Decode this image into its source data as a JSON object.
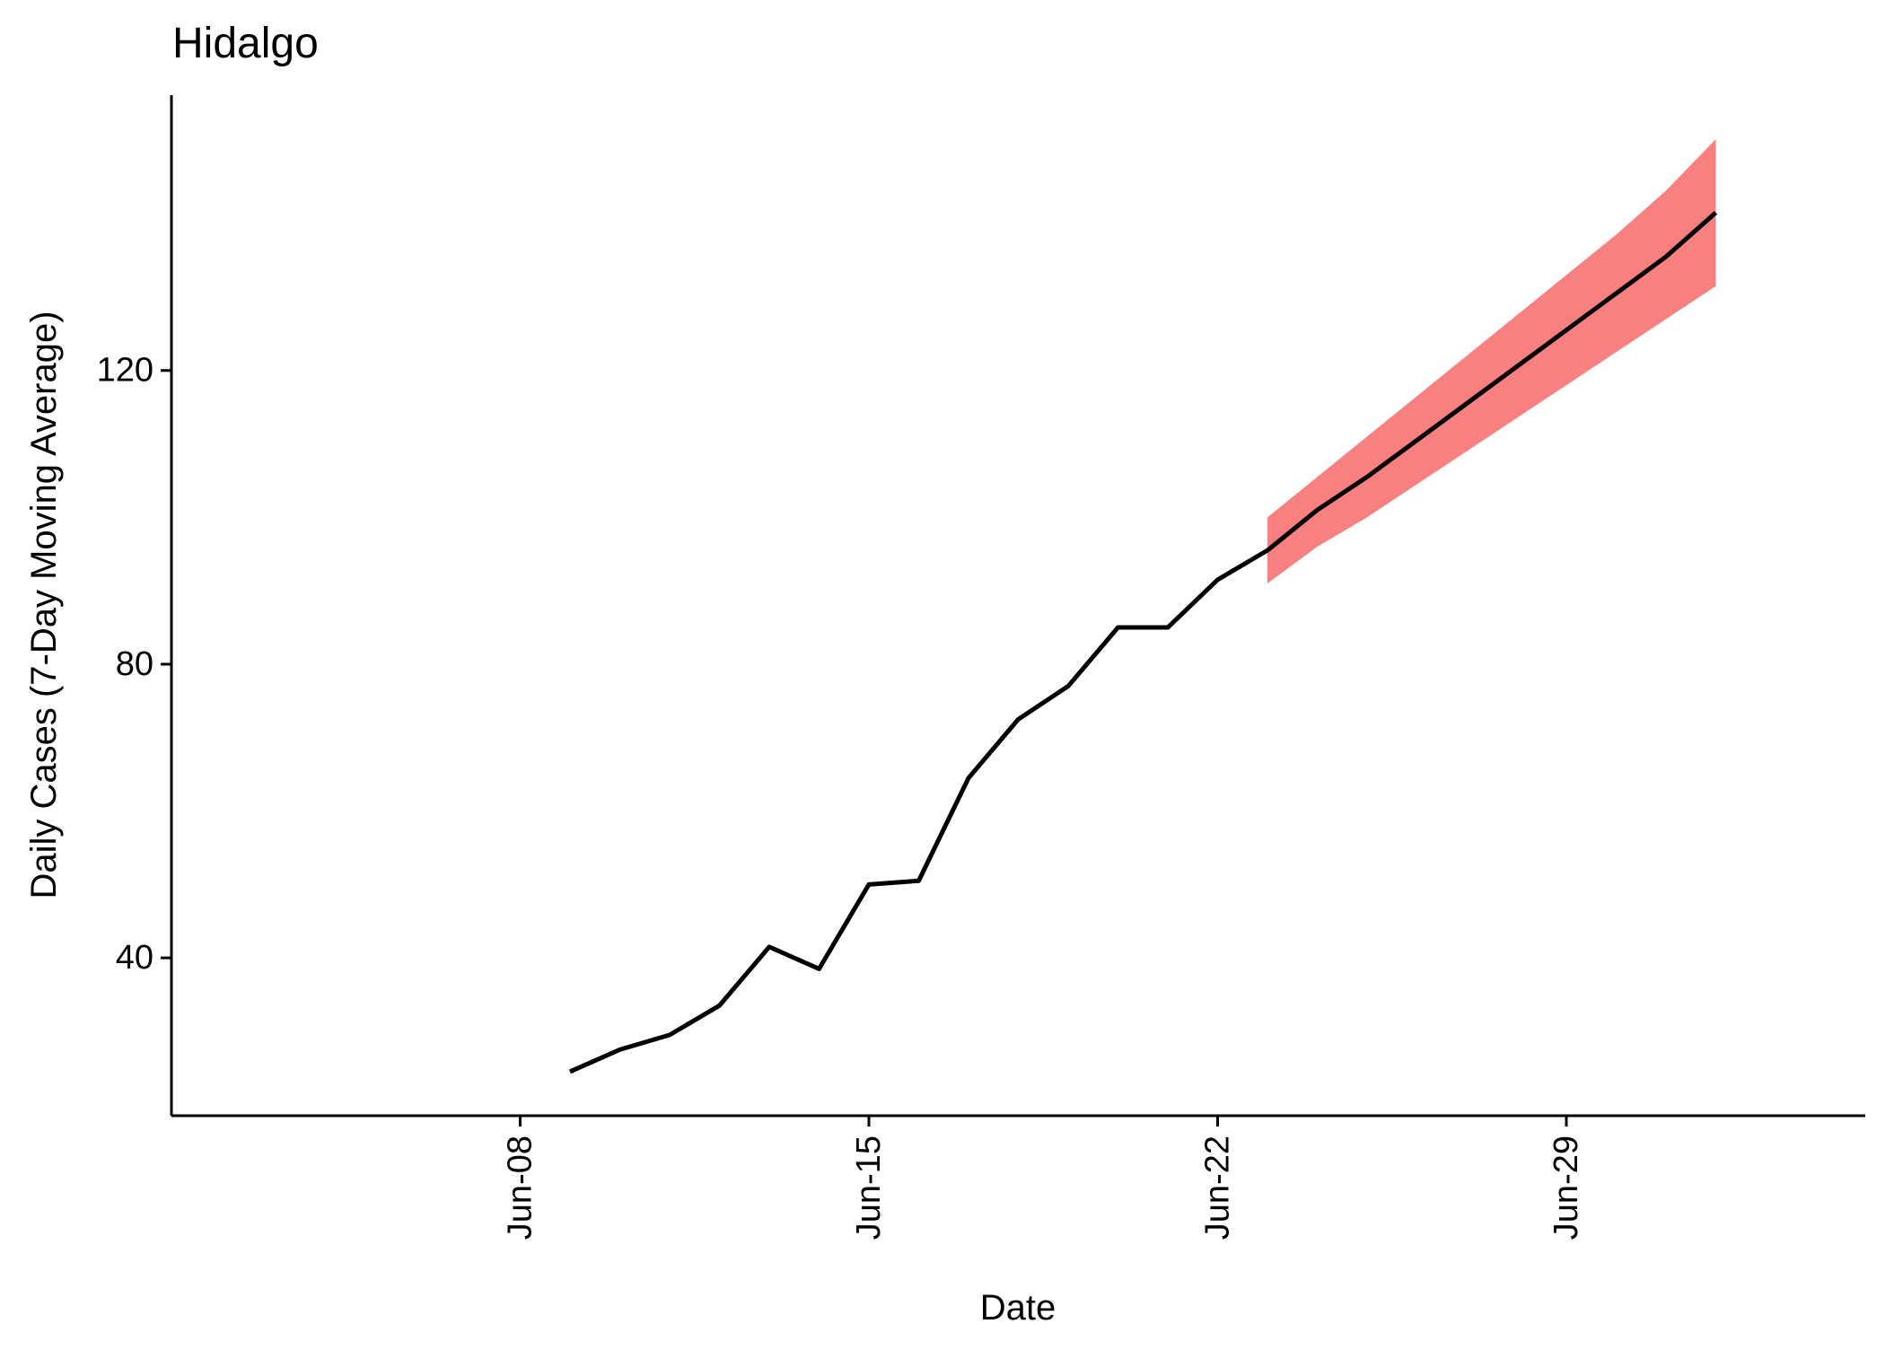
{
  "chart_data": {
    "type": "line",
    "title": "Hidalgo",
    "xlabel": "Date",
    "ylabel": "Daily Cases (7-Day Moving Average)",
    "x_ticks": [
      {
        "label": "Jun-08",
        "date": "2020-06-08"
      },
      {
        "label": "Jun-15",
        "date": "2020-06-15"
      },
      {
        "label": "Jun-22",
        "date": "2020-06-22"
      },
      {
        "label": "Jun-29",
        "date": "2020-06-29"
      }
    ],
    "y_ticks": [
      40,
      80,
      120
    ],
    "xlim": [
      "2020-06-01",
      "2020-07-05"
    ],
    "ylim": [
      18.5,
      157.5
    ],
    "grid": false,
    "series": [
      {
        "role": "observed",
        "color": "#000000",
        "points": [
          {
            "date": "2020-06-09",
            "y": 24.5
          },
          {
            "date": "2020-06-10",
            "y": 27.5
          },
          {
            "date": "2020-06-11",
            "y": 29.5
          },
          {
            "date": "2020-06-12",
            "y": 33.5
          },
          {
            "date": "2020-06-13",
            "y": 41.5
          },
          {
            "date": "2020-06-14",
            "y": 38.5
          },
          {
            "date": "2020-06-15",
            "y": 50.0
          },
          {
            "date": "2020-06-16",
            "y": 50.5
          },
          {
            "date": "2020-06-17",
            "y": 64.5
          },
          {
            "date": "2020-06-18",
            "y": 72.5
          },
          {
            "date": "2020-06-19",
            "y": 77.0
          },
          {
            "date": "2020-06-20",
            "y": 85.0
          },
          {
            "date": "2020-06-21",
            "y": 85.0
          },
          {
            "date": "2020-06-22",
            "y": 91.5
          },
          {
            "date": "2020-06-23",
            "y": 95.5
          }
        ]
      },
      {
        "role": "forecast",
        "color": "#000000",
        "band_color": "#F88080",
        "points": [
          {
            "date": "2020-06-23",
            "y": 95.5,
            "lower": 91.0,
            "upper": 100.0
          },
          {
            "date": "2020-06-24",
            "y": 101.0,
            "lower": 96.0,
            "upper": 105.5
          },
          {
            "date": "2020-06-25",
            "y": 105.5,
            "lower": 100.0,
            "upper": 111.0
          },
          {
            "date": "2020-06-26",
            "y": 110.5,
            "lower": 104.5,
            "upper": 116.5
          },
          {
            "date": "2020-06-27",
            "y": 115.5,
            "lower": 109.0,
            "upper": 122.0
          },
          {
            "date": "2020-06-28",
            "y": 120.5,
            "lower": 113.5,
            "upper": 127.5
          },
          {
            "date": "2020-06-29",
            "y": 125.5,
            "lower": 118.0,
            "upper": 133.0
          },
          {
            "date": "2020-06-30",
            "y": 130.5,
            "lower": 122.5,
            "upper": 138.5
          },
          {
            "date": "2020-07-01",
            "y": 135.5,
            "lower": 127.0,
            "upper": 144.5
          },
          {
            "date": "2020-07-02",
            "y": 141.5,
            "lower": 131.5,
            "upper": 151.5
          }
        ]
      }
    ]
  }
}
